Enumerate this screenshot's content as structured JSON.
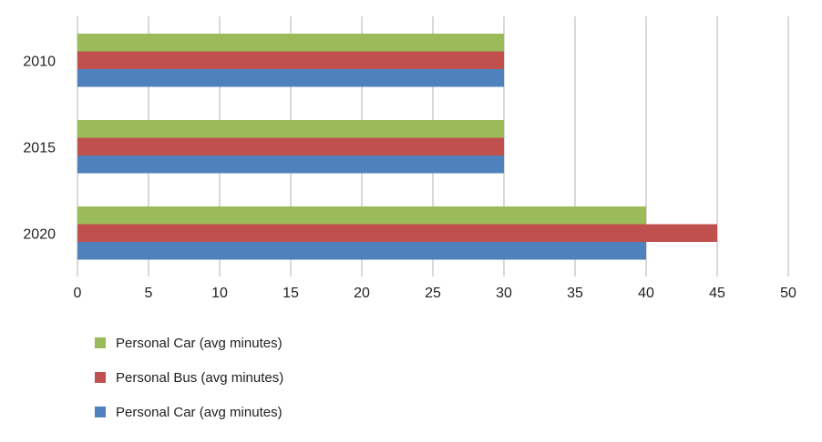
{
  "chart_data": {
    "type": "bar",
    "orientation": "horizontal",
    "categories": [
      "2010",
      "2015",
      "2020"
    ],
    "series": [
      {
        "name": "Personal Car (avg minutes)",
        "color": "#9BBB59",
        "values": [
          30,
          30,
          40
        ]
      },
      {
        "name": "Personal Bus (avg minutes)",
        "color": "#C0504D",
        "values": [
          30,
          30,
          45
        ]
      },
      {
        "name": "Personal Car (avg minutes)",
        "color": "#4F81BD",
        "values": [
          30,
          30,
          40
        ]
      }
    ],
    "xlim": [
      0,
      50
    ],
    "xticks": [
      0,
      5,
      10,
      15,
      20,
      25,
      30,
      35,
      40,
      45,
      50
    ],
    "grid": true,
    "legend_position": "bottom-left",
    "title": "",
    "xlabel": "",
    "ylabel": ""
  }
}
